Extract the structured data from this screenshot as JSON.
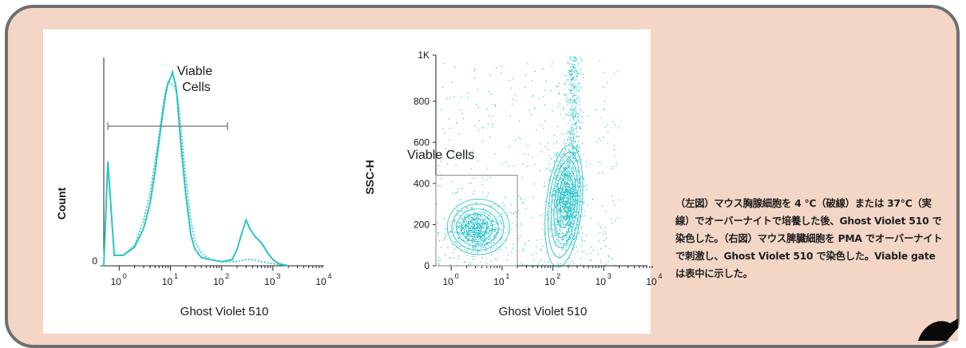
{
  "caption": "（左図）マウス胸腺細胞を 4 ℃（破線）または 37℃（実線）でオーバーナイトで培養した後、Ghost Violet 510 で染色した。（右図）マウス脾臓細胞を PMA でオーバーナイトで刺激し、Ghost Violet 510 で染色した。Viable gate は表中に示した。",
  "colors": {
    "panel_bg": "#f3d6c5",
    "panel_border": "#6f6f6f",
    "series": "#2cc3c7"
  },
  "chart_data": [
    {
      "type": "line",
      "xlabel": "Ghost Violet 510",
      "ylabel": "Count",
      "x_scale": "log",
      "xlim": [
        0.5,
        10000
      ],
      "x_ticks": [
        {
          "value": 1,
          "label": "10",
          "exp": "0"
        },
        {
          "value": 10,
          "label": "10",
          "exp": "1"
        },
        {
          "value": 100,
          "label": "10",
          "exp": "2"
        },
        {
          "value": 1000,
          "label": "10",
          "exp": "3"
        },
        {
          "value": 10000,
          "label": "10",
          "exp": "4"
        }
      ],
      "y_ticks": [
        {
          "value": 0,
          "label": "0"
        }
      ],
      "ylim": [
        0,
        100
      ],
      "gate": {
        "label_line1": "Viable",
        "label_line2": "Cells",
        "x_range": [
          0.6,
          130
        ],
        "y": 67
      },
      "series": [
        {
          "style": "solid",
          "x": [
            0.5,
            0.6,
            0.8,
            1.2,
            2,
            3,
            4,
            5,
            6,
            7,
            8,
            9,
            10,
            11,
            12,
            13,
            14,
            16,
            20,
            25,
            30,
            40,
            60,
            100,
            160,
            200,
            250,
            300,
            350,
            450,
            600,
            800,
            1000,
            1300,
            2000
          ],
          "y": [
            0,
            50,
            5,
            5,
            9,
            18,
            30,
            45,
            60,
            72,
            82,
            88,
            90,
            93,
            89,
            85,
            76,
            58,
            34,
            15,
            8,
            4,
            3,
            2,
            3,
            8,
            16,
            22,
            18,
            14,
            11,
            6,
            3,
            1,
            0
          ]
        },
        {
          "style": "dotted",
          "x": [
            0.5,
            0.6,
            0.8,
            1.2,
            2,
            3,
            4,
            5,
            6,
            7,
            8,
            9,
            10,
            12,
            14,
            16,
            20,
            25,
            30,
            40,
            60,
            100,
            200,
            300,
            400,
            600,
            1000,
            2000
          ],
          "y": [
            0,
            50,
            5,
            5,
            10,
            22,
            35,
            50,
            63,
            75,
            84,
            88,
            88,
            86,
            80,
            66,
            42,
            22,
            12,
            6,
            3,
            2,
            2,
            3,
            3,
            2,
            1,
            0
          ]
        }
      ]
    },
    {
      "type": "scatter",
      "xlabel": "Ghost Violet 510",
      "ylabel": "SSC-H",
      "x_scale": "log",
      "xlim": [
        0.5,
        10000
      ],
      "ylim": [
        0,
        1024
      ],
      "x_ticks": [
        {
          "value": 1,
          "label": "10",
          "exp": "0"
        },
        {
          "value": 10,
          "label": "10",
          "exp": "1"
        },
        {
          "value": 100,
          "label": "10",
          "exp": "2"
        },
        {
          "value": 1000,
          "label": "10",
          "exp": "3"
        },
        {
          "value": 10000,
          "label": "10",
          "exp": "4"
        }
      ],
      "y_ticks": [
        {
          "value": 0,
          "label": "0"
        },
        {
          "value": 200,
          "label": "200"
        },
        {
          "value": 400,
          "label": "400"
        },
        {
          "value": 600,
          "label": "600"
        },
        {
          "value": 800,
          "label": "800"
        },
        {
          "value": 1024,
          "label": "1K"
        }
      ],
      "gate": {
        "label": "Viable Cells",
        "x_range": [
          0.5,
          20
        ],
        "y_range": [
          0,
          440
        ]
      },
      "populations": [
        {
          "center": [
            3,
            180
          ],
          "spread_log": 0.4,
          "spread_y": 80
        },
        {
          "center": [
            180,
            330
          ],
          "spread_log": 0.25,
          "spread_y": 180
        }
      ]
    }
  ]
}
